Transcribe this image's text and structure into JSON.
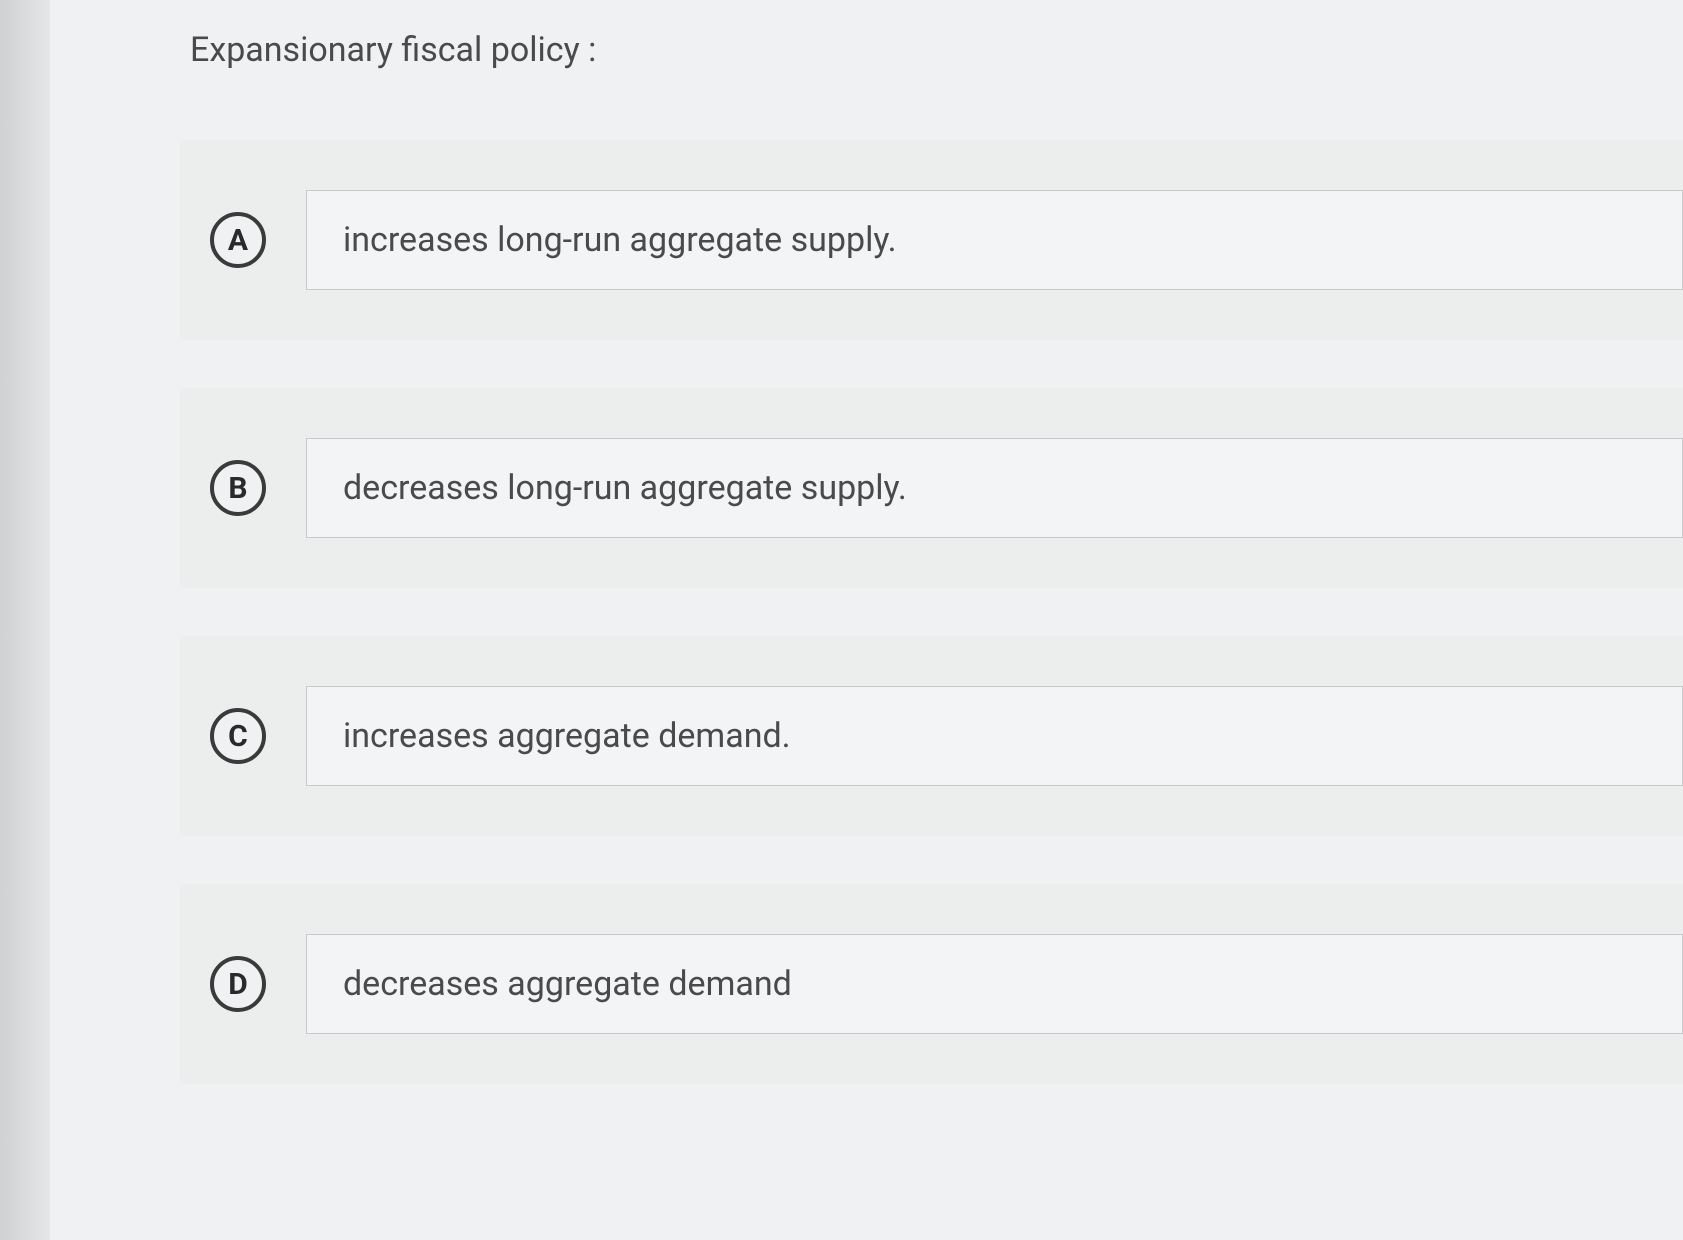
{
  "question": {
    "stem": "Expansionary fiscal policy :",
    "options": [
      {
        "letter": "A",
        "text": "increases long-run aggregate supply."
      },
      {
        "letter": "B",
        "text": "decreases long-run aggregate supply."
      },
      {
        "letter": "C",
        "text": "increases aggregate demand."
      },
      {
        "letter": "D",
        "text": "decreases aggregate demand"
      }
    ]
  },
  "colors": {
    "page_bg": "#f0f1f3",
    "option_bg": "#eceded",
    "text_box_bg": "#f3f4f6",
    "text_box_border": "#c8c9cb",
    "letter_border": "#3a3a3a",
    "text_color": "#4a4a4a"
  }
}
